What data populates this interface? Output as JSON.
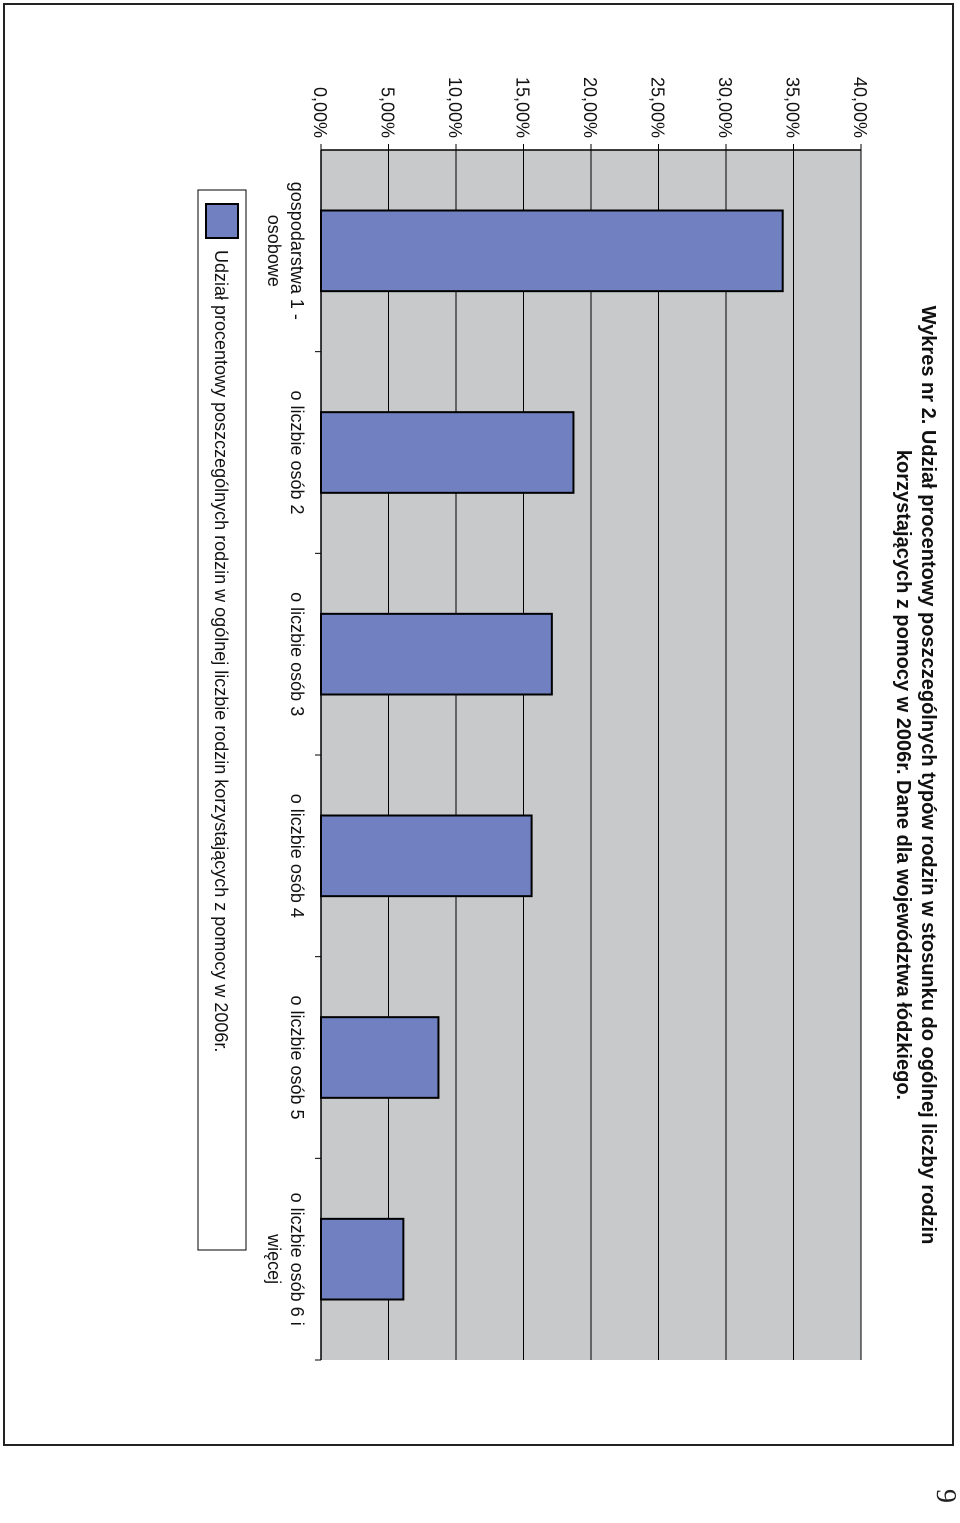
{
  "page_number": "9",
  "chart_data": {
    "type": "bar",
    "title_lines": [
      "Wykres nr 2. Udział procentowy poszczególnych typów rodzin w stosunku do ogólnej liczby rodzin",
      "korzystających z pomocy w 2006r. Dane dla województwa łódzkiego."
    ],
    "categories": [
      [
        "gospodarstwa 1 -",
        "osobowe"
      ],
      [
        "o liczbie osób 2"
      ],
      [
        "o liczbie osób 3"
      ],
      [
        "o liczbie osób 4"
      ],
      [
        "o liczbie osób 5"
      ],
      [
        "o liczbie osób 6 i",
        "więcej"
      ]
    ],
    "values": [
      34.2,
      18.7,
      17.1,
      15.6,
      8.7,
      6.1
    ],
    "ylim": [
      0,
      40
    ],
    "y_ticks": [
      0,
      5,
      10,
      15,
      20,
      25,
      30,
      35,
      40
    ],
    "y_tick_labels": [
      "0,00%",
      "5,00%",
      "10,00%",
      "15,00%",
      "20,00%",
      "25,00%",
      "30,00%",
      "35,00%",
      "40,00%"
    ],
    "grid": true,
    "legend_placement": "bottom",
    "series": [
      {
        "name": "Udział procentowy poszczególnych rodzin w ogólnej liczbie rodzin korzystających z pomocy w 2006r.",
        "color": "#7080c0"
      }
    ],
    "colors": {
      "plot_bg": "#c8c9cb",
      "bar": "#7080c0",
      "grid": "#000000"
    }
  }
}
